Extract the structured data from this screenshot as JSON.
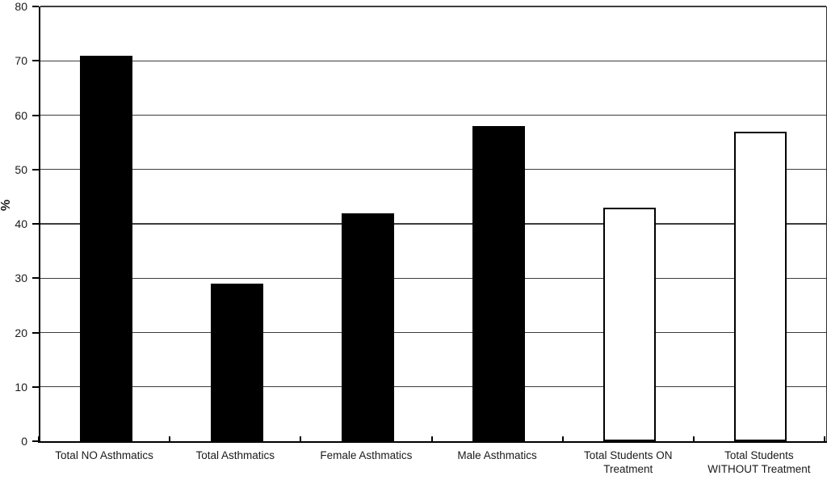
{
  "figure": {
    "background_color": "#ffffff",
    "axis_color": "#000000",
    "gridline_color": "#3d3d3d",
    "text_color": "#1a1a1a"
  },
  "chart_data": {
    "type": "bar",
    "title": "",
    "xlabel": "",
    "ylabel": "%",
    "ylim": [
      0,
      80
    ],
    "ytick_interval": 10,
    "ytick_labels": [
      "0",
      "10",
      "20",
      "30",
      "40",
      "50",
      "60",
      "70",
      "80"
    ],
    "grid": true,
    "legend": "none",
    "categories": [
      "Total NO Asthmatics",
      "Total Asthmatics",
      "Female Asthmatics",
      "Male Asthmatics",
      "Total Students ON Treatment",
      "Total Students WITHOUT Treatment"
    ],
    "category_display": [
      "Total NO Asthmatics",
      "Total Asthmatics",
      "Female Asthmatics",
      "Male Asthmatics",
      "Total Students ON\nTreatment",
      "Total Students\nWITHOUT Treatment"
    ],
    "values": [
      71,
      29,
      42,
      58,
      43,
      57
    ],
    "bar_fills": [
      "#000000",
      "#000000",
      "#000000",
      "#000000",
      "#ffffff",
      "#ffffff"
    ],
    "bar_border_color": "#000000",
    "bar_width_fraction": 0.4
  }
}
